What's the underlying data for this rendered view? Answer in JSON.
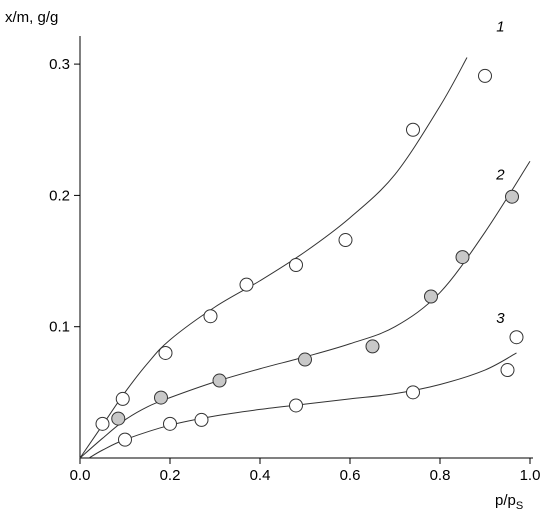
{
  "chart_data": {
    "type": "scatter",
    "xlabel": "p/p",
    "xlabel_subscript": "S",
    "ylabel": "x/m, g/g",
    "xlim": [
      0,
      1.0
    ],
    "ylim": [
      0,
      0.34
    ],
    "x_ticks": [
      0.0,
      0.2,
      0.4,
      0.6,
      0.8,
      1.0
    ],
    "x_tick_labels": [
      "0.0",
      "0.2",
      "0.4",
      "0.6",
      "0.8",
      "1.0"
    ],
    "y_ticks": [
      0.1,
      0.2,
      0.3
    ],
    "y_tick_labels": [
      "0.1",
      "0.2",
      "0.3"
    ],
    "grid": false,
    "legend": "none",
    "series": [
      {
        "label": "1",
        "marker_fill": "#ffffff",
        "points": [
          {
            "x": 0.05,
            "y": 0.026
          },
          {
            "x": 0.095,
            "y": 0.045
          },
          {
            "x": 0.19,
            "y": 0.08
          },
          {
            "x": 0.29,
            "y": 0.108
          },
          {
            "x": 0.37,
            "y": 0.132
          },
          {
            "x": 0.48,
            "y": 0.147
          },
          {
            "x": 0.59,
            "y": 0.166
          },
          {
            "x": 0.74,
            "y": 0.25
          },
          {
            "x": 0.9,
            "y": 0.291
          }
        ],
        "curve": [
          {
            "x": 0.0,
            "y": 0.0
          },
          {
            "x": 0.05,
            "y": 0.025
          },
          {
            "x": 0.1,
            "y": 0.05
          },
          {
            "x": 0.15,
            "y": 0.072
          },
          {
            "x": 0.2,
            "y": 0.09
          },
          {
            "x": 0.3,
            "y": 0.115
          },
          {
            "x": 0.4,
            "y": 0.135
          },
          {
            "x": 0.5,
            "y": 0.157
          },
          {
            "x": 0.6,
            "y": 0.183
          },
          {
            "x": 0.7,
            "y": 0.216
          },
          {
            "x": 0.8,
            "y": 0.268
          },
          {
            "x": 0.86,
            "y": 0.305
          }
        ]
      },
      {
        "label": "2",
        "marker_fill": "#c8c8c8",
        "points": [
          {
            "x": 0.085,
            "y": 0.03
          },
          {
            "x": 0.18,
            "y": 0.046
          },
          {
            "x": 0.31,
            "y": 0.059
          },
          {
            "x": 0.5,
            "y": 0.075
          },
          {
            "x": 0.65,
            "y": 0.085
          },
          {
            "x": 0.78,
            "y": 0.123
          },
          {
            "x": 0.85,
            "y": 0.153
          },
          {
            "x": 0.96,
            "y": 0.199
          }
        ],
        "curve": [
          {
            "x": 0.0,
            "y": 0.0
          },
          {
            "x": 0.05,
            "y": 0.015
          },
          {
            "x": 0.1,
            "y": 0.029
          },
          {
            "x": 0.15,
            "y": 0.039
          },
          {
            "x": 0.2,
            "y": 0.046
          },
          {
            "x": 0.3,
            "y": 0.058
          },
          {
            "x": 0.4,
            "y": 0.068
          },
          {
            "x": 0.5,
            "y": 0.077
          },
          {
            "x": 0.6,
            "y": 0.087
          },
          {
            "x": 0.7,
            "y": 0.1
          },
          {
            "x": 0.8,
            "y": 0.126
          },
          {
            "x": 0.9,
            "y": 0.172
          },
          {
            "x": 1.0,
            "y": 0.226
          }
        ]
      },
      {
        "label": "3",
        "marker_fill": "#ffffff",
        "points": [
          {
            "x": 0.1,
            "y": 0.014
          },
          {
            "x": 0.2,
            "y": 0.026
          },
          {
            "x": 0.27,
            "y": 0.029
          },
          {
            "x": 0.48,
            "y": 0.04
          },
          {
            "x": 0.74,
            "y": 0.05
          },
          {
            "x": 0.95,
            "y": 0.067
          },
          {
            "x": 0.97,
            "y": 0.092
          }
        ],
        "curve": [
          {
            "x": 0.02,
            "y": 0.0
          },
          {
            "x": 0.05,
            "y": 0.006
          },
          {
            "x": 0.1,
            "y": 0.014
          },
          {
            "x": 0.2,
            "y": 0.025
          },
          {
            "x": 0.3,
            "y": 0.032
          },
          {
            "x": 0.4,
            "y": 0.037
          },
          {
            "x": 0.5,
            "y": 0.041
          },
          {
            "x": 0.6,
            "y": 0.045
          },
          {
            "x": 0.7,
            "y": 0.049
          },
          {
            "x": 0.8,
            "y": 0.056
          },
          {
            "x": 0.9,
            "y": 0.067
          },
          {
            "x": 0.97,
            "y": 0.08
          }
        ]
      }
    ]
  }
}
